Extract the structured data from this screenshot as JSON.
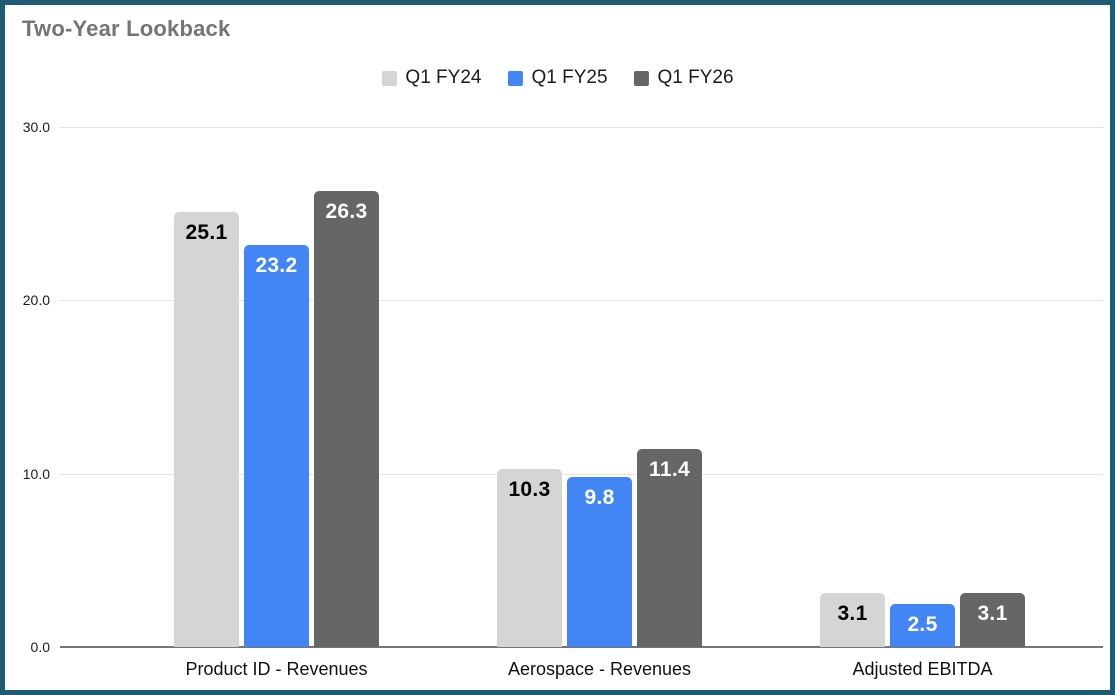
{
  "window": {
    "border_color": "#1e5b74",
    "background_color": "#ffffff"
  },
  "chart_data": {
    "type": "bar",
    "title": "Two-Year Lookback",
    "title_color": "#757575",
    "categories": [
      "Product ID - Revenues",
      "Aerospace - Revenues",
      "Adjusted EBITDA"
    ],
    "series": [
      {
        "name": "Q1 FY24",
        "color": "#d5d5d6",
        "label_color": "#000000",
        "values": [
          25.1,
          10.3,
          3.1
        ]
      },
      {
        "name": "Q1 FY25",
        "color": "#4285f4",
        "label_color": "#ffffff",
        "values": [
          23.2,
          9.8,
          2.5
        ]
      },
      {
        "name": "Q1 FY26",
        "color": "#666666",
        "label_color": "#ffffff",
        "values": [
          26.3,
          11.4,
          3.1
        ]
      }
    ],
    "xlabel": "",
    "ylabel": "",
    "y_axis": {
      "min": 0,
      "max": 30,
      "ticks": [
        {
          "label": "30.0",
          "value": 30
        },
        {
          "label": "20.0",
          "value": 20
        },
        {
          "label": "10.0",
          "value": 10
        },
        {
          "label": "0.0",
          "value": 0
        }
      ]
    },
    "grid": true,
    "gridline_color": "#e4e4e4",
    "baseline_color": "#757575",
    "legend_position": "top",
    "data_labels": true
  }
}
